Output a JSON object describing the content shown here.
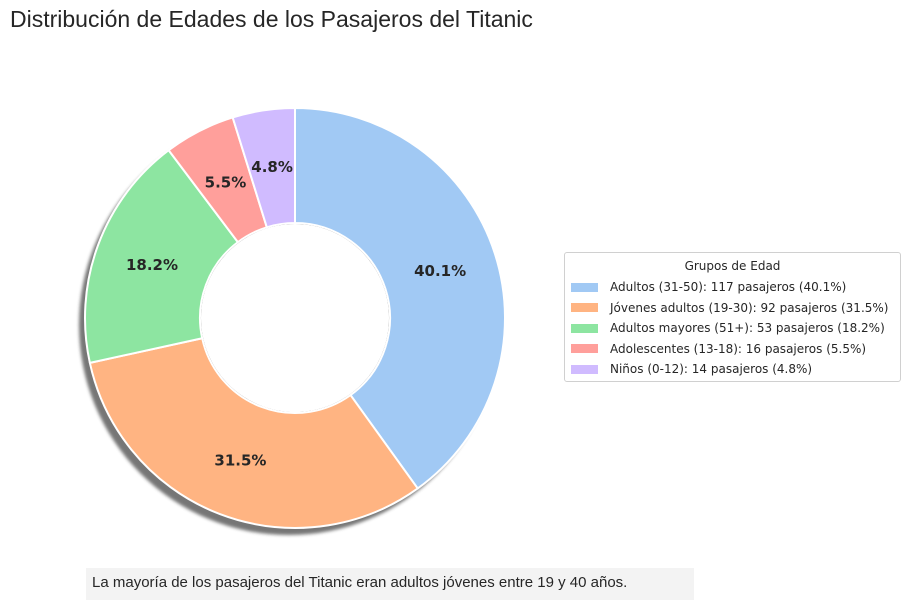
{
  "title": "Distribución de Edades de los Pasajeros del Titanic",
  "footnote": "La mayoría de los pasajeros del Titanic eran adultos jóvenes entre 19 y 40 años.",
  "chart_data": {
    "type": "pie",
    "variant": "donut",
    "title": "Distribución de Edades de los Pasajeros del Titanic",
    "start": "top, clockwise",
    "shadow": true,
    "legend_title": "Grupos de Edad",
    "legend_placement": "right",
    "slices": [
      {
        "label": "Adultos (31-50): 117 pasajeros (40.1%)",
        "value": 117,
        "pct_label": "40.1%",
        "color": "#a1c9f4"
      },
      {
        "label": "Jóvenes adultos (19-30): 92 pasajeros (31.5%)",
        "value": 92,
        "pct_label": "31.5%",
        "color": "#ffb482"
      },
      {
        "label": "Adultos mayores (51+): 53 pasajeros (18.2%)",
        "value": 53,
        "pct_label": "18.2%",
        "color": "#8de5a1"
      },
      {
        "label": "Adolescentes (13-18): 16 pasajeros (5.5%)",
        "value": 16,
        "pct_label": "5.5%",
        "color": "#ff9f9b"
      },
      {
        "label": "Niños (0-12): 14 pasajeros (4.8%)",
        "value": 14,
        "pct_label": "4.8%",
        "color": "#d0bbff"
      }
    ]
  }
}
